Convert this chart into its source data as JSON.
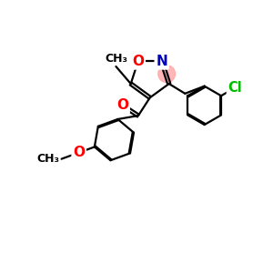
{
  "background_color": "#ffffff",
  "atom_colors": {
    "O": "#ff0000",
    "N": "#0000bb",
    "Cl": "#00bb00",
    "C": "#000000"
  },
  "bond_color": "#000000",
  "bond_width": 1.6,
  "dbo": 0.055,
  "highlight_color": "#ffaaaa",
  "figsize": [
    3.0,
    3.0
  ],
  "dpi": 100
}
